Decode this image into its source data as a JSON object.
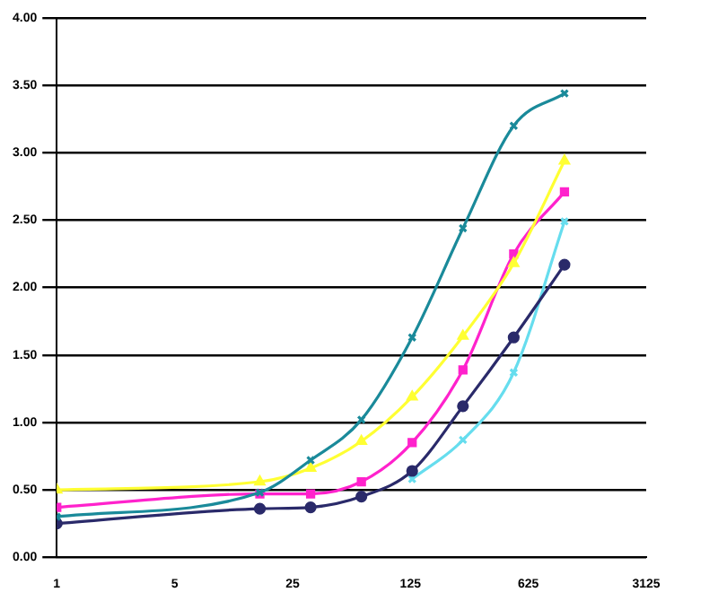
{
  "chart_data": {
    "type": "line",
    "x": [
      1,
      16,
      32,
      64,
      128,
      256,
      512,
      1024
    ],
    "series": [
      {
        "color": "#1a8a9a",
        "marker": "cross",
        "values": [
          0.3,
          0.48,
          0.72,
          1.02,
          1.63,
          2.44,
          3.2,
          3.44
        ]
      },
      {
        "color": "#ffff33",
        "marker": "triangle",
        "values": [
          0.5,
          0.56,
          0.66,
          0.86,
          1.19,
          1.64,
          2.18,
          2.94
        ]
      },
      {
        "color": "#ff22cc",
        "marker": "square",
        "values": [
          0.37,
          0.47,
          0.47,
          0.56,
          0.85,
          1.39,
          2.25,
          2.71
        ]
      },
      {
        "color": "#2a2a6a",
        "marker": "circle",
        "values": [
          0.25,
          0.36,
          0.37,
          0.45,
          0.64,
          1.12,
          1.63,
          2.17
        ]
      },
      {
        "color": "#66ddee",
        "marker": "cross",
        "values": [
          null,
          null,
          null,
          null,
          0.58,
          0.87,
          1.37,
          2.49
        ]
      }
    ],
    "log": "x",
    "xlim": [
      1,
      3125
    ],
    "xticks": [
      1,
      5,
      25,
      125,
      625,
      3125
    ],
    "ylim": [
      0,
      4
    ],
    "yticks": [
      {
        "value": 0,
        "label": "0.00"
      },
      {
        "value": 0.5,
        "label": "0.50"
      },
      {
        "value": 1,
        "label": "1.00"
      },
      {
        "value": 1.5,
        "label": "1.50"
      },
      {
        "value": 2,
        "label": "2.00"
      },
      {
        "value": 2.5,
        "label": "2.50"
      },
      {
        "value": 3,
        "label": "3.00"
      },
      {
        "value": 3.5,
        "label": "3.50"
      },
      {
        "value": 4,
        "label": "4.00"
      }
    ],
    "grid": "y",
    "legend": false
  }
}
